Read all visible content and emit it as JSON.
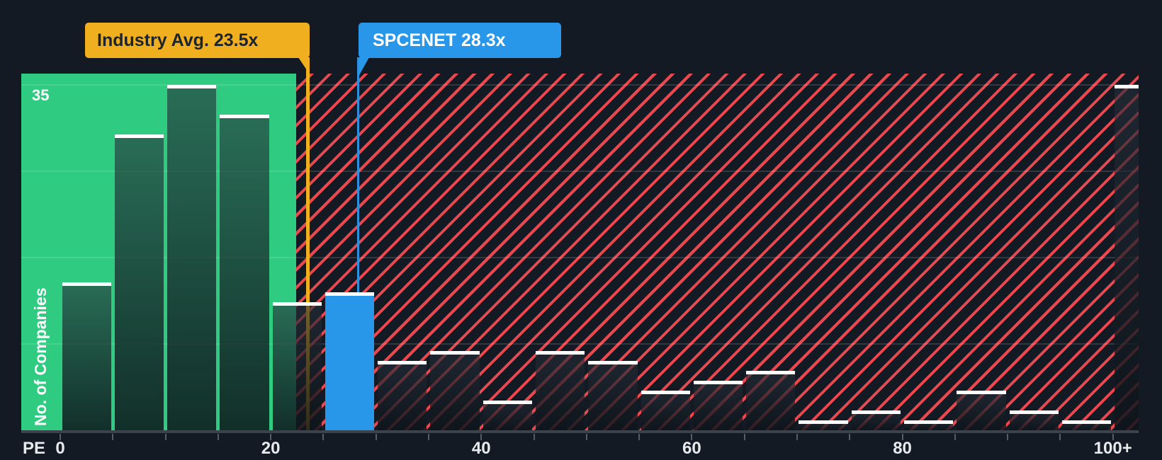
{
  "chart_data": {
    "type": "bar",
    "xlabel": "PE",
    "ylabel": "No. of Companies",
    "y_top_label": "35",
    "ylim": [
      0,
      36.2
    ],
    "grid": true,
    "gridline_values": [
      35,
      26.25,
      17.5,
      8.75
    ],
    "x_tick_labels": [
      "0",
      "20",
      "40",
      "60",
      "80",
      "100+"
    ],
    "x_tick_values": [
      0,
      20,
      40,
      60,
      80,
      100
    ],
    "bin_width_pe": 5,
    "categories": [
      "0-5",
      "5-10",
      "10-15",
      "15-20",
      "20-25",
      "25-30",
      "30-35",
      "35-40",
      "40-45",
      "45-50",
      "50-55",
      "55-60",
      "60-65",
      "65-70",
      "70-75",
      "75-80",
      "80-85",
      "85-90",
      "90-95",
      "95-100",
      "100+"
    ],
    "values": [
      15,
      30,
      35,
      32,
      13,
      14,
      7,
      8,
      3,
      8,
      7,
      4,
      5,
      6,
      1,
      2,
      1,
      4,
      2,
      1,
      35
    ],
    "highlight_bin_index": 5,
    "legend_position": "none"
  },
  "annotations": {
    "industry_avg": {
      "label": "Industry Avg. 23.5x",
      "pe_value": 23.5
    },
    "company": {
      "label": "SPCENET 28.3x",
      "pe_value": 28.3
    }
  },
  "colors": {
    "background": "#141a24",
    "below_avg_zone_green": "#2ecb81",
    "hatch_red": "#e8484e",
    "industry_avg_yellow": "#f0af1e",
    "company_blue": "#2897e9",
    "bar_cap": "#ffffff",
    "axis_text": "#e8ebee",
    "callout_text_dark": "#1d2430"
  }
}
